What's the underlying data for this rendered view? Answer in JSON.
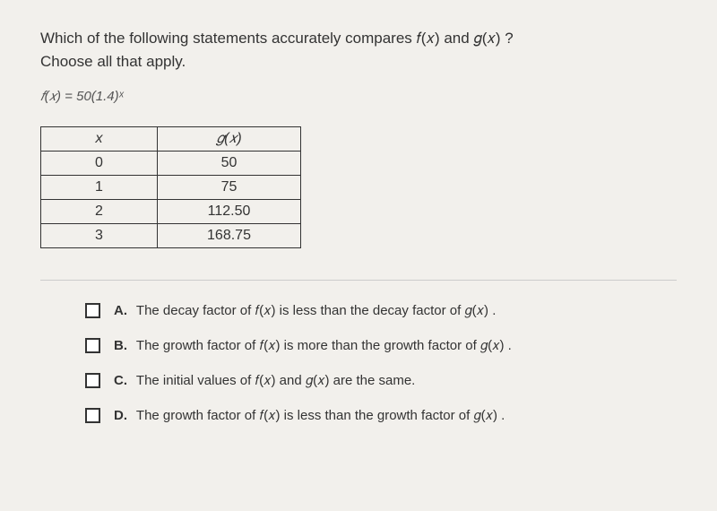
{
  "question": {
    "prompt_line1": "Which of the following statements accurately compares 𝑓(𝑥) and 𝑔(𝑥) ?",
    "prompt_line2": "Choose all that apply.",
    "formula": "𝑓(𝑥) = 50(1.4)ˣ"
  },
  "table": {
    "header_x": "x",
    "header_gx": "𝑔(𝑥)",
    "rows": [
      {
        "x": "0",
        "gx": "50"
      },
      {
        "x": "1",
        "gx": "75"
      },
      {
        "x": "2",
        "gx": "112.50"
      },
      {
        "x": "3",
        "gx": "168.75"
      }
    ]
  },
  "options": [
    {
      "label": "A.",
      "text": "The decay factor of 𝑓(𝑥) is less than the decay factor of 𝑔(𝑥) ."
    },
    {
      "label": "B.",
      "text": "The growth factor of 𝑓(𝑥) is more than the growth factor of 𝑔(𝑥) ."
    },
    {
      "label": "C.",
      "text": "The initial values of 𝑓(𝑥) and 𝑔(𝑥) are the same."
    },
    {
      "label": "D.",
      "text": "The growth factor of 𝑓(𝑥) is less than the growth factor of 𝑔(𝑥) ."
    }
  ]
}
